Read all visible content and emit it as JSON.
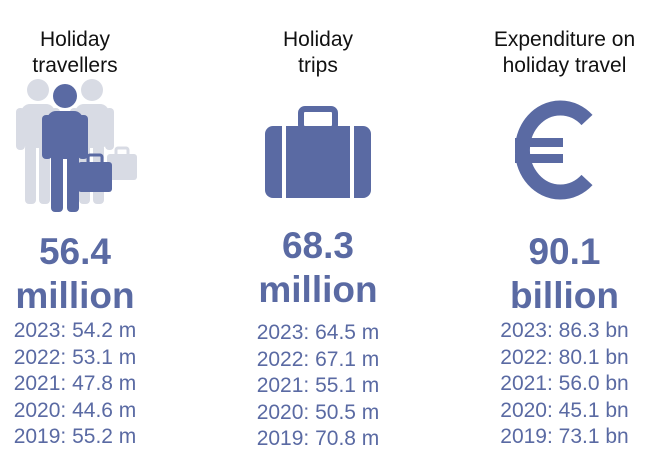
{
  "columns": [
    {
      "title_lines": [
        "Holiday",
        "travellers"
      ],
      "icon": "travellers-icon",
      "value": "56.4",
      "unit": "million",
      "history": [
        "2023: 54.2 m",
        "2022: 53.1 m",
        "2021: 47.8 m",
        "2020: 44.6 m",
        "2019: 55.2 m"
      ]
    },
    {
      "title_lines": [
        "Holiday",
        "trips"
      ],
      "icon": "suitcase-icon",
      "value": "68.3",
      "unit": "million",
      "history": [
        "2023: 64.5 m",
        "2022: 67.1 m",
        "2021: 55.1 m",
        "2020: 50.5 m",
        "2019: 70.8 m"
      ]
    },
    {
      "title_lines": [
        "Expenditure on",
        "holiday travel"
      ],
      "icon": "euro-icon",
      "value": "90.1",
      "unit": "billion",
      "history": [
        "2023: 86.3 bn",
        "2022: 80.1 bn",
        "2021: 56.0 bn",
        "2020: 45.1 bn",
        "2019: 73.1 bn"
      ]
    }
  ],
  "colors": {
    "accent": "#5a6aa3",
    "icon_light": "#d8dbe4",
    "text": "#111111"
  }
}
